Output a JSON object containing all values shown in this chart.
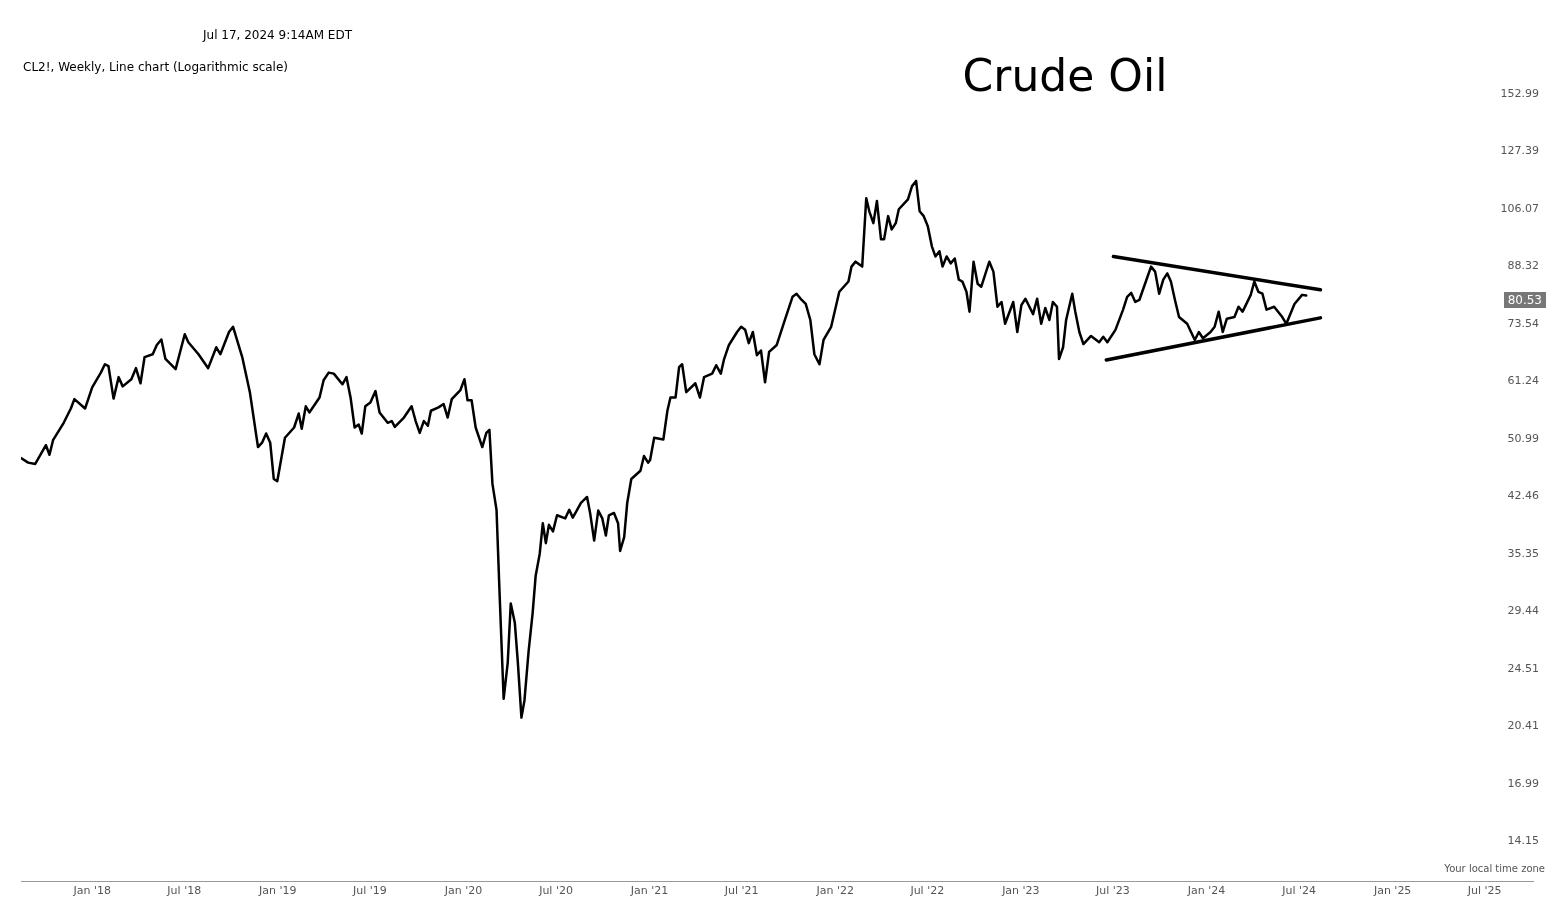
{
  "chart_data": {
    "type": "line",
    "title": "Crude Oil",
    "subtitle": "CL2!, Weekly, Line chart (Logarithmic scale)",
    "annotations": [
      "Jul 17, 2024 9:14AM EDT",
      "Your local time zone",
      "80.53"
    ],
    "log": "y",
    "marker": "none",
    "line_style": "solid",
    "xlim": [
      "2017-08-14",
      "2025-10-04"
    ],
    "ylim": [
      12.45,
      152.99
    ],
    "xticks": [
      {
        "value": "2018-01-01",
        "label": "Jan '18"
      },
      {
        "value": "2018-07-01",
        "label": "Jul '18"
      },
      {
        "value": "2019-01-01",
        "label": "Jan '19"
      },
      {
        "value": "2019-07-01",
        "label": "Jul '19"
      },
      {
        "value": "2020-01-01",
        "label": "Jan '20"
      },
      {
        "value": "2020-07-01",
        "label": "Jul '20"
      },
      {
        "value": "2021-01-01",
        "label": "Jan '21"
      },
      {
        "value": "2021-07-01",
        "label": "Jul '21"
      },
      {
        "value": "2022-01-01",
        "label": "Jan '22"
      },
      {
        "value": "2022-07-01",
        "label": "Jul '22"
      },
      {
        "value": "2023-01-01",
        "label": "Jan '23"
      },
      {
        "value": "2023-07-01",
        "label": "Jul '23"
      },
      {
        "value": "2024-01-01",
        "label": "Jan '24"
      },
      {
        "value": "2024-07-01",
        "label": "Jul '24"
      },
      {
        "value": "2025-01-01",
        "label": "Jan '25"
      },
      {
        "value": "2025-07-01",
        "label": "Jul '25"
      }
    ],
    "yticks": [
      14.15,
      16.99,
      20.41,
      24.51,
      29.44,
      35.35,
      42.46,
      50.99,
      61.24,
      73.54,
      88.32,
      106.07,
      127.39,
      152.99
    ],
    "series": [
      {
        "color": "#000000",
        "x": [
          "2017-08-14",
          "2017-08-28",
          "2017-09-11",
          "2017-10-02",
          "2017-10-09",
          "2017-10-16",
          "2017-11-06",
          "2017-11-20",
          "2017-11-27",
          "2017-12-18",
          "2018-01-01",
          "2018-01-18",
          "2018-01-26",
          "2018-02-02",
          "2018-02-12",
          "2018-02-22",
          "2018-03-02",
          "2018-03-19",
          "2018-03-28",
          "2018-04-06",
          "2018-04-14",
          "2018-04-30",
          "2018-05-08",
          "2018-05-17",
          "2018-05-25",
          "2018-06-14",
          "2018-07-02",
          "2018-07-09",
          "2018-07-29",
          "2018-08-17",
          "2018-09-02",
          "2018-09-10",
          "2018-09-27",
          "2018-10-05",
          "2018-10-23",
          "2018-11-07",
          "2018-11-23",
          "2018-12-01",
          "2018-12-09",
          "2018-12-17",
          "2018-12-24",
          "2018-12-31",
          "2019-01-15",
          "2019-02-02",
          "2019-02-11",
          "2019-02-17",
          "2019-02-25",
          "2019-03-04",
          "2019-03-24",
          "2019-04-01",
          "2019-04-11",
          "2019-04-21",
          "2019-05-08",
          "2019-05-16",
          "2019-05-24",
          "2019-06-01",
          "2019-06-09",
          "2019-06-15",
          "2019-06-22",
          "2019-07-02",
          "2019-07-12",
          "2019-07-20",
          "2019-08-05",
          "2019-08-13",
          "2019-08-19",
          "2019-09-06",
          "2019-09-21",
          "2019-09-29",
          "2019-10-07",
          "2019-10-15",
          "2019-10-23",
          "2019-10-29",
          "2019-11-13",
          "2019-11-23",
          "2019-12-01",
          "2019-12-09",
          "2019-12-26",
          "2020-01-03",
          "2020-01-09",
          "2020-01-17",
          "2020-01-25",
          "2020-02-07",
          "2020-02-15",
          "2020-02-21",
          "2020-02-27",
          "2020-03-06",
          "2020-03-12",
          "2020-03-20",
          "2020-03-28",
          "2020-04-03",
          "2020-04-11",
          "2020-04-17",
          "2020-04-24",
          "2020-04-30",
          "2020-05-08",
          "2020-05-16",
          "2020-05-22",
          "2020-05-30",
          "2020-06-05",
          "2020-06-11",
          "2020-06-17",
          "2020-06-25",
          "2020-07-03",
          "2020-07-19",
          "2020-07-27",
          "2020-08-03",
          "2020-08-19",
          "2020-08-31",
          "2020-09-06",
          "2020-09-14",
          "2020-09-22",
          "2020-09-30",
          "2020-10-07",
          "2020-10-13",
          "2020-10-23",
          "2020-10-31",
          "2020-11-04",
          "2020-11-12",
          "2020-11-18",
          "2020-11-26",
          "2020-12-14",
          "2020-12-21",
          "2020-12-29",
          "2021-01-02",
          "2021-01-10",
          "2021-01-28",
          "2021-02-05",
          "2021-02-11",
          "2021-02-21",
          "2021-02-28",
          "2021-03-06",
          "2021-03-14",
          "2021-04-01",
          "2021-04-10",
          "2021-04-18",
          "2021-05-04",
          "2021-05-12",
          "2021-05-21",
          "2021-05-27",
          "2021-06-06",
          "2021-06-22",
          "2021-06-30",
          "2021-07-08",
          "2021-07-15",
          "2021-07-23",
          "2021-07-31",
          "2021-08-08",
          "2021-08-16",
          "2021-08-24",
          "2021-09-08",
          "2021-09-24",
          "2021-10-09",
          "2021-10-17",
          "2021-10-25",
          "2021-11-04",
          "2021-11-13",
          "2021-11-21",
          "2021-12-01",
          "2021-12-09",
          "2021-12-24",
          "2022-01-09",
          "2022-01-27",
          "2022-02-02",
          "2022-02-10",
          "2022-02-23",
          "2022-03-03",
          "2022-03-09",
          "2022-03-17",
          "2022-03-24",
          "2022-04-01",
          "2022-04-07",
          "2022-04-15",
          "2022-04-22",
          "2022-04-30",
          "2022-05-06",
          "2022-05-24",
          "2022-06-01",
          "2022-06-09",
          "2022-06-16",
          "2022-06-24",
          "2022-07-02",
          "2022-07-10",
          "2022-07-17",
          "2022-07-25",
          "2022-07-31",
          "2022-08-08",
          "2022-08-16",
          "2022-08-24",
          "2022-09-01",
          "2022-09-08",
          "2022-09-16",
          "2022-09-22",
          "2022-09-30",
          "2022-10-08",
          "2022-10-15",
          "2022-10-31",
          "2022-11-08",
          "2022-11-16",
          "2022-11-24",
          "2022-12-01",
          "2022-12-17",
          "2022-12-25",
          "2023-01-02",
          "2023-01-10",
          "2023-01-25",
          "2023-02-02",
          "2023-02-10",
          "2023-02-18",
          "2023-02-26",
          "2023-03-05",
          "2023-03-13",
          "2023-03-17",
          "2023-03-25",
          "2023-03-31",
          "2023-04-12",
          "2023-04-18",
          "2023-04-26",
          "2023-05-04",
          "2023-05-19",
          "2023-06-04",
          "2023-06-12",
          "2023-06-20",
          "2023-07-06",
          "2023-07-21",
          "2023-07-29",
          "2023-08-06",
          "2023-08-14",
          "2023-08-22",
          "2023-09-07",
          "2023-09-14",
          "2023-09-22",
          "2023-09-30",
          "2023-10-08",
          "2023-10-16",
          "2023-10-23",
          "2023-10-31",
          "2023-11-08",
          "2023-11-24",
          "2023-12-09",
          "2023-12-17",
          "2023-12-25",
          "2024-01-09",
          "2024-01-17",
          "2024-01-25",
          "2024-02-02",
          "2024-02-10",
          "2024-02-25",
          "2024-03-04",
          "2024-03-12",
          "2024-03-28",
          "2024-04-04",
          "2024-04-12",
          "2024-04-20",
          "2024-04-28",
          "2024-05-13",
          "2024-05-29",
          "2024-06-06",
          "2024-06-22",
          "2024-07-07",
          "2024-07-15"
        ],
        "values": [
          48.0,
          47.3,
          47.1,
          50.0,
          48.5,
          50.8,
          53.7,
          56.2,
          57.9,
          56.2,
          60.1,
          63.0,
          64.7,
          64.3,
          58.0,
          62.1,
          60.3,
          61.7,
          63.9,
          60.9,
          66.2,
          66.8,
          68.8,
          70.0,
          65.8,
          63.7,
          71.2,
          69.4,
          66.8,
          63.9,
          68.3,
          66.8,
          71.7,
          72.9,
          66.2,
          59.2,
          49.7,
          50.4,
          51.9,
          50.4,
          44.9,
          44.6,
          51.2,
          52.9,
          55.3,
          52.7,
          56.6,
          55.5,
          58.2,
          61.5,
          63.0,
          62.8,
          60.7,
          62.1,
          58.2,
          52.9,
          53.4,
          51.9,
          56.6,
          57.3,
          59.4,
          55.5,
          53.7,
          54.0,
          53.0,
          54.6,
          56.6,
          54.0,
          52.0,
          54.0,
          53.2,
          55.8,
          56.4,
          57.0,
          54.6,
          57.9,
          59.6,
          61.7,
          57.7,
          57.7,
          52.9,
          49.7,
          52.0,
          52.5,
          44.2,
          40.7,
          31.2,
          22.3,
          25.0,
          30.2,
          28.4,
          25.0,
          21.0,
          22.2,
          25.9,
          29.3,
          33.0,
          35.4,
          39.0,
          36.6,
          38.8,
          38.0,
          40.0,
          39.6,
          40.7,
          39.7,
          41.6,
          42.4,
          40.3,
          36.9,
          40.6,
          39.6,
          37.5,
          40.0,
          40.3,
          39.0,
          35.7,
          37.3,
          41.6,
          44.9,
          46.1,
          48.3,
          47.3,
          47.7,
          51.2,
          50.9,
          55.8,
          58.2,
          58.2,
          64.1,
          64.7,
          59.2,
          60.9,
          58.2,
          62.1,
          62.8,
          64.5,
          62.8,
          65.6,
          68.8,
          71.7,
          72.9,
          72.2,
          69.2,
          71.7,
          66.6,
          67.6,
          61.1,
          67.3,
          68.8,
          74.5,
          80.2,
          81.0,
          79.7,
          78.4,
          74.5,
          66.8,
          64.7,
          69.9,
          72.9,
          81.5,
          84.2,
          88.3,
          89.7,
          88.3,
          109.8,
          105.3,
          101.4,
          108.8,
          96.3,
          96.3,
          103.7,
          99.4,
          101.4,
          106.0,
          109.4,
          114.1,
          116.0,
          105.3,
          103.7,
          100.4,
          94.2,
          91.2,
          92.7,
          88.3,
          91.2,
          89.2,
          90.6,
          84.7,
          84.2,
          81.5,
          76.5,
          89.7,
          83.6,
          82.8,
          89.7,
          86.9,
          77.7,
          78.9,
          73.6,
          78.9,
          71.7,
          78.1,
          79.7,
          75.9,
          79.7,
          73.6,
          77.4,
          74.5,
          78.9,
          77.7,
          65.8,
          68.3,
          74.5,
          81.0,
          76.5,
          71.7,
          69.0,
          70.8,
          69.4,
          70.6,
          69.4,
          72.2,
          77.0,
          80.2,
          81.2,
          78.9,
          79.4,
          85.5,
          88.3,
          86.9,
          81.0,
          84.7,
          86.4,
          84.2,
          79.4,
          75.2,
          73.6,
          69.9,
          71.7,
          70.3,
          71.7,
          72.9,
          76.5,
          71.7,
          74.8,
          75.2,
          77.7,
          76.5,
          80.7,
          84.2,
          81.5,
          81.0,
          77.0,
          77.7,
          75.2,
          73.6,
          78.4,
          80.7,
          80.53
        ]
      },
      {
        "type": "line",
        "color": "#000000",
        "x": [
          "2023-07-02",
          "2024-08-12"
        ],
        "values": [
          91.2,
          82.0
        ]
      },
      {
        "type": "line",
        "color": "#000000",
        "x": [
          "2023-06-18",
          "2024-08-12"
        ],
        "values": [
          65.6,
          75.0
        ]
      }
    ]
  }
}
